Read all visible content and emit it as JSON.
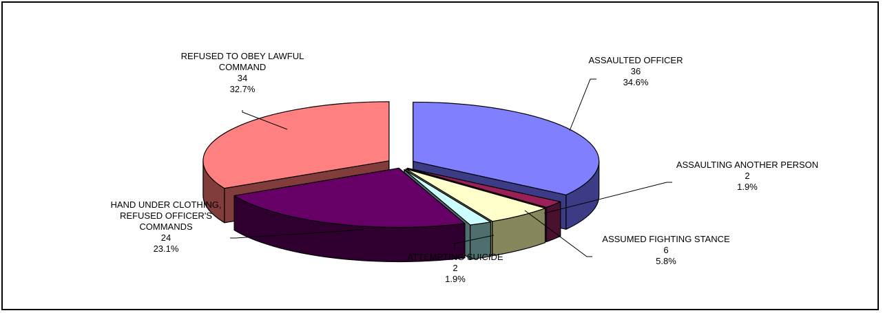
{
  "chart_data": {
    "type": "pie",
    "style": "3d-exploded",
    "slices": [
      {
        "label": "ASSAULTED OFFICER",
        "value": 36,
        "percent": "34.6%",
        "top_color": "#8080ff",
        "side_color": "#3c3c86"
      },
      {
        "label": "ASSAULTING ANOTHER PERSON",
        "value": 2,
        "percent": "1.9%",
        "top_color": "#992157",
        "side_color": "#4a1030"
      },
      {
        "label": "ASSUMED FIGHTING STANCE",
        "value": 6,
        "percent": "5.8%",
        "top_color": "#ffffcc",
        "side_color": "#87875e"
      },
      {
        "label": "ATTEMPTING SUICIDE",
        "value": 2,
        "percent": "1.9%",
        "top_color": "#ccffff",
        "side_color": "#4f6f6f"
      },
      {
        "label": "HAND UNDER CLOTHING, REFUSED OFFICER'S COMMANDS",
        "value": 24,
        "percent": "23.1%",
        "top_color": "#660066",
        "side_color": "#2f002f"
      },
      {
        "label": "REFUSED TO OBEY LAWFUL COMMAND",
        "value": 34,
        "percent": "32.7%",
        "top_color": "#ff8080",
        "side_color": "#833c3c"
      }
    ]
  }
}
